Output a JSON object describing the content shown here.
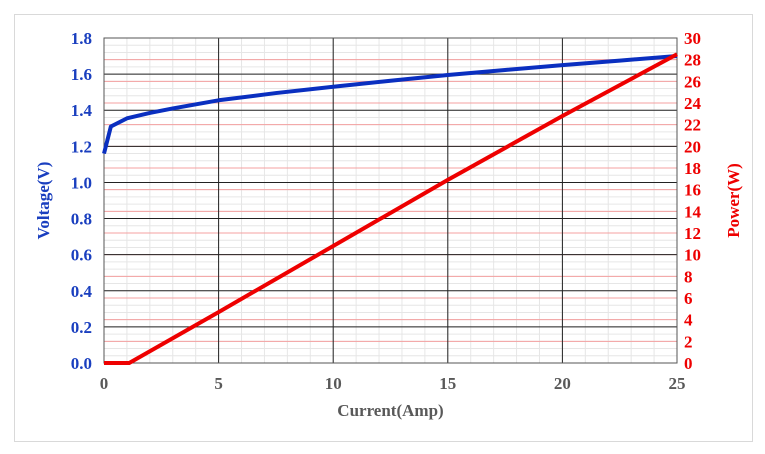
{
  "chart_data": {
    "type": "line",
    "xlabel": "Current(Amp)",
    "ylabel": "Voltage(V)",
    "y2label": "Power(W)",
    "xlim": [
      0,
      25
    ],
    "ylim": [
      0,
      1.8
    ],
    "y2lim": [
      0,
      30
    ],
    "xticks": [
      "0",
      "5",
      "10",
      "15",
      "20",
      "25"
    ],
    "yticks": [
      "0.0",
      "0.2",
      "0.4",
      "0.6",
      "0.8",
      "1.0",
      "1.2",
      "1.4",
      "1.6",
      "1.8"
    ],
    "y2ticks": [
      "0",
      "2",
      "4",
      "6",
      "8",
      "10",
      "12",
      "14",
      "16",
      "18",
      "20",
      "22",
      "24",
      "26",
      "28",
      "30"
    ],
    "grid": true,
    "colors": {
      "voltage": "#0a2fc0",
      "power": "#ee0000",
      "axis_left": "#1a3fbf",
      "axis_right": "#ee0000"
    },
    "series": [
      {
        "axis": "left",
        "x": [
          0,
          0.3,
          1,
          2,
          3,
          5,
          7.5,
          10,
          12.5,
          15,
          17.5,
          20,
          22.5,
          25
        ],
        "y": [
          1.16,
          1.31,
          1.355,
          1.385,
          1.41,
          1.455,
          1.495,
          1.53,
          1.563,
          1.595,
          1.623,
          1.65,
          1.675,
          1.7
        ]
      },
      {
        "axis": "right",
        "x": [
          0,
          1.1,
          5,
          10,
          15,
          20,
          25
        ],
        "y": [
          0,
          0,
          4.7,
          10.8,
          16.9,
          22.8,
          28.5
        ]
      }
    ]
  }
}
